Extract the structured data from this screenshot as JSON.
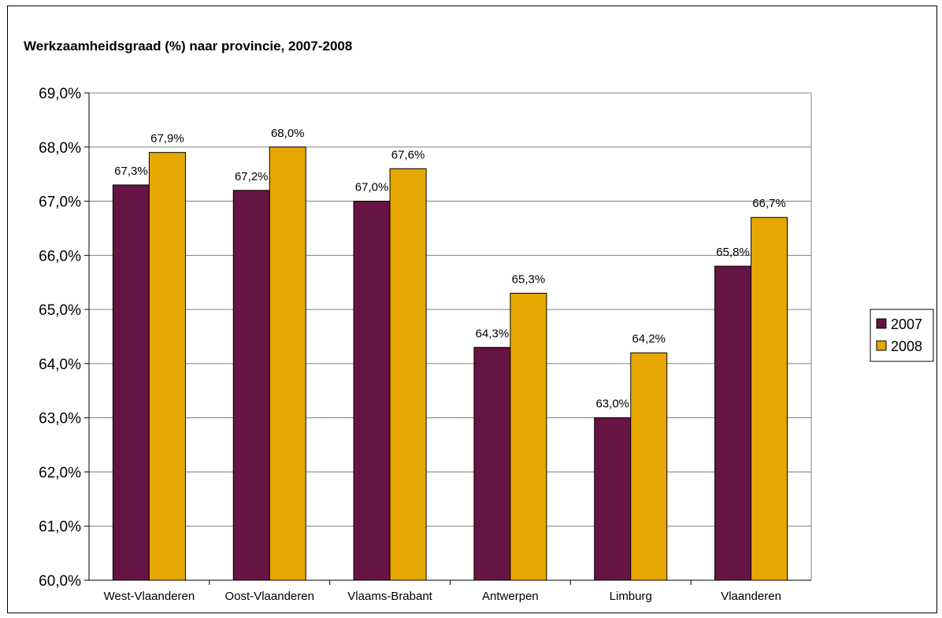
{
  "chart_data": {
    "type": "bar",
    "title": "Werkzaamheidsgraad (%) naar provincie, 2007-2008",
    "xlabel": "",
    "ylabel": "",
    "categories": [
      "West-Vlaanderen",
      "Oost-Vlaanderen",
      "Vlaams-Brabant",
      "Antwerpen",
      "Limburg",
      "Vlaanderen"
    ],
    "series": [
      {
        "name": "2007",
        "color": "#661443",
        "values": [
          67.3,
          67.2,
          67.0,
          64.3,
          63.0,
          65.8
        ],
        "labels": [
          "67,3%",
          "67,2%",
          "67,0%",
          "64,3%",
          "63,0%",
          "65,8%"
        ]
      },
      {
        "name": "2008",
        "color": "#E6A800",
        "values": [
          67.9,
          68.0,
          67.6,
          65.3,
          64.2,
          66.7
        ],
        "labels": [
          "67,9%",
          "68,0%",
          "67,6%",
          "65,3%",
          "64,2%",
          "66,7%"
        ]
      }
    ],
    "ylim": [
      60,
      69
    ],
    "yticks": [
      60,
      61,
      62,
      63,
      64,
      65,
      66,
      67,
      68,
      69
    ],
    "ytick_labels": [
      "60,0%",
      "61,0%",
      "62,0%",
      "63,0%",
      "64,0%",
      "65,0%",
      "66,0%",
      "67,0%",
      "68,0%",
      "69,0%"
    ],
    "grid": true,
    "legend": "right"
  }
}
